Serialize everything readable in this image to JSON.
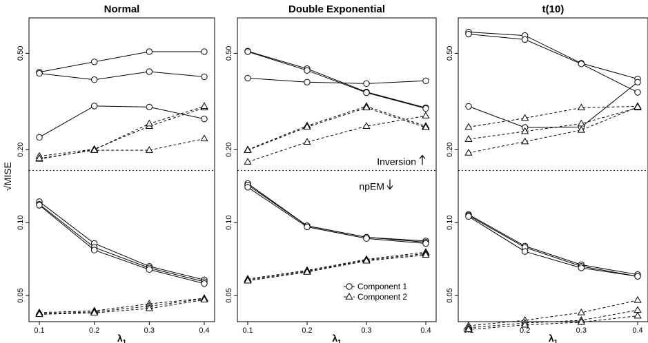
{
  "chart_data": {
    "type": "line",
    "ylabel": "√MISE",
    "y_scale": "log",
    "ylim": [
      0.039,
      0.7
    ],
    "y_ticks": [
      0.05,
      0.1,
      0.2,
      0.5
    ],
    "y_tick_labels": [
      "0.05",
      "0.10",
      "0.20",
      "0.50"
    ],
    "x_ticks": [
      0.1,
      0.2,
      0.3,
      0.4
    ],
    "x_tick_labels": [
      "0.1",
      "0.2",
      "0.3",
      "0.4"
    ],
    "xlabel": "λ",
    "xlabel_subscript": "1",
    "separator_y": 0.164,
    "annotations": {
      "upper": "Inversion",
      "lower": "npEM"
    },
    "legend": {
      "placement": "bottom-right of middle panel",
      "entries": [
        {
          "label": "Component 1",
          "marker": "circle",
          "line": "solid"
        },
        {
          "label": "Component 2",
          "marker": "triangle",
          "line": "dashed"
        }
      ]
    },
    "panels": [
      {
        "title": "Normal",
        "series": [
          {
            "component": 1,
            "method": "Inversion",
            "x": [
              0.1,
              0.2,
              0.3,
              0.4
            ],
            "y": [
              0.418,
              0.461,
              0.508,
              0.508
            ]
          },
          {
            "component": 1,
            "method": "Inversion",
            "x": [
              0.1,
              0.2,
              0.3,
              0.4
            ],
            "y": [
              0.413,
              0.389,
              0.42,
              0.4
            ]
          },
          {
            "component": 1,
            "method": "Inversion",
            "x": [
              0.1,
              0.2,
              0.3,
              0.4
            ],
            "y": [
              0.225,
              0.303,
              0.3,
              0.268
            ]
          },
          {
            "component": 2,
            "method": "Inversion",
            "x": [
              0.1,
              0.2,
              0.3,
              0.4
            ],
            "y": [
              0.188,
              0.201,
              0.25,
              0.298
            ]
          },
          {
            "component": 2,
            "method": "Inversion",
            "x": [
              0.1,
              0.2,
              0.3,
              0.4
            ],
            "y": [
              0.183,
              0.2,
              0.256,
              0.302
            ]
          },
          {
            "component": 2,
            "method": "Inversion",
            "x": [
              0.1,
              0.2,
              0.3,
              0.4
            ],
            "y": [
              0.184,
              0.199,
              0.199,
              0.222
            ]
          },
          {
            "component": 1,
            "method": "npEM",
            "x": [
              0.1,
              0.2,
              0.3,
              0.4
            ],
            "y": [
              0.122,
              0.082,
              0.066,
              0.058
            ]
          },
          {
            "component": 1,
            "method": "npEM",
            "x": [
              0.1,
              0.2,
              0.3,
              0.4
            ],
            "y": [
              0.119,
              0.079,
              0.065,
              0.057
            ]
          },
          {
            "component": 1,
            "method": "npEM",
            "x": [
              0.1,
              0.2,
              0.3,
              0.4
            ],
            "y": [
              0.118,
              0.077,
              0.064,
              0.056
            ]
          },
          {
            "component": 2,
            "method": "npEM",
            "x": [
              0.1,
              0.2,
              0.3,
              0.4
            ],
            "y": [
              0.0425,
              0.0432,
              0.0462,
              0.0487
            ]
          },
          {
            "component": 2,
            "method": "npEM",
            "x": [
              0.1,
              0.2,
              0.3,
              0.4
            ],
            "y": [
              0.042,
              0.0428,
              0.0452,
              0.0485
            ]
          },
          {
            "component": 2,
            "method": "npEM",
            "x": [
              0.1,
              0.2,
              0.3,
              0.4
            ],
            "y": [
              0.0418,
              0.0424,
              0.0442,
              0.048
            ]
          }
        ]
      },
      {
        "title": "Double Exponential",
        "series": [
          {
            "component": 1,
            "method": "Inversion",
            "x": [
              0.1,
              0.2,
              0.3,
              0.4
            ],
            "y": [
              0.51,
              0.432,
              0.346,
              0.298
            ]
          },
          {
            "component": 1,
            "method": "Inversion",
            "x": [
              0.1,
              0.2,
              0.3,
              0.4
            ],
            "y": [
              0.508,
              0.425,
              0.344,
              0.296
            ]
          },
          {
            "component": 1,
            "method": "Inversion",
            "x": [
              0.1,
              0.2,
              0.3,
              0.4
            ],
            "y": [
              0.395,
              0.38,
              0.375,
              0.385
            ]
          },
          {
            "component": 2,
            "method": "Inversion",
            "x": [
              0.1,
              0.2,
              0.3,
              0.4
            ],
            "y": [
              0.2,
              0.251,
              0.302,
              0.25
            ]
          },
          {
            "component": 2,
            "method": "Inversion",
            "x": [
              0.1,
              0.2,
              0.3,
              0.4
            ],
            "y": [
              0.199,
              0.248,
              0.298,
              0.247
            ]
          },
          {
            "component": 2,
            "method": "Inversion",
            "x": [
              0.1,
              0.2,
              0.3,
              0.4
            ],
            "y": [
              0.178,
              0.215,
              0.25,
              0.276
            ]
          },
          {
            "component": 1,
            "method": "npEM",
            "x": [
              0.1,
              0.2,
              0.3,
              0.4
            ],
            "y": [
              0.145,
              0.097,
              0.087,
              0.084
            ]
          },
          {
            "component": 1,
            "method": "npEM",
            "x": [
              0.1,
              0.2,
              0.3,
              0.4
            ],
            "y": [
              0.143,
              0.097,
              0.087,
              0.083
            ]
          },
          {
            "component": 1,
            "method": "npEM",
            "x": [
              0.1,
              0.2,
              0.3,
              0.4
            ],
            "y": [
              0.14,
              0.096,
              0.086,
              0.082
            ]
          },
          {
            "component": 2,
            "method": "npEM",
            "x": [
              0.1,
              0.2,
              0.3,
              0.4
            ],
            "y": [
              0.0585,
              0.0635,
              0.0705,
              0.0755
            ]
          },
          {
            "component": 2,
            "method": "npEM",
            "x": [
              0.1,
              0.2,
              0.3,
              0.4
            ],
            "y": [
              0.058,
              0.063,
              0.07,
              0.0745
            ]
          },
          {
            "component": 2,
            "method": "npEM",
            "x": [
              0.1,
              0.2,
              0.3,
              0.4
            ],
            "y": [
              0.0575,
              0.0625,
              0.0695,
              0.0735
            ]
          }
        ]
      },
      {
        "title": "t(10)",
        "series": [
          {
            "component": 1,
            "method": "Inversion",
            "x": [
              0.1,
              0.2,
              0.3,
              0.4
            ],
            "y": [
              0.612,
              0.592,
              0.455,
              0.392
            ]
          },
          {
            "component": 1,
            "method": "Inversion",
            "x": [
              0.1,
              0.2,
              0.3,
              0.4
            ],
            "y": [
              0.6,
              0.57,
              0.452,
              0.345
            ]
          },
          {
            "component": 1,
            "method": "Inversion",
            "x": [
              0.1,
              0.2,
              0.3,
              0.4
            ],
            "y": [
              0.302,
              0.247,
              0.248,
              0.38
            ]
          },
          {
            "component": 2,
            "method": "Inversion",
            "x": [
              0.1,
              0.2,
              0.3,
              0.4
            ],
            "y": [
              0.248,
              0.27,
              0.298,
              0.302
            ]
          },
          {
            "component": 2,
            "method": "Inversion",
            "x": [
              0.1,
              0.2,
              0.3,
              0.4
            ],
            "y": [
              0.221,
              0.238,
              0.256,
              0.298
            ]
          },
          {
            "component": 2,
            "method": "Inversion",
            "x": [
              0.1,
              0.2,
              0.3,
              0.4
            ],
            "y": [
              0.194,
              0.216,
              0.241,
              0.3
            ]
          },
          {
            "component": 1,
            "method": "npEM",
            "x": [
              0.1,
              0.2,
              0.3,
              0.4
            ],
            "y": [
              0.108,
              0.08,
              0.067,
              0.061
            ]
          },
          {
            "component": 1,
            "method": "npEM",
            "x": [
              0.1,
              0.2,
              0.3,
              0.4
            ],
            "y": [
              0.107,
              0.079,
              0.066,
              0.06
            ]
          },
          {
            "component": 1,
            "method": "npEM",
            "x": [
              0.1,
              0.2,
              0.3,
              0.4
            ],
            "y": [
              0.106,
              0.076,
              0.065,
              0.06
            ]
          },
          {
            "component": 2,
            "method": "npEM",
            "x": [
              0.1,
              0.2,
              0.3,
              0.4
            ],
            "y": [
              0.0375,
              0.0395,
              0.0425,
              0.0478
            ]
          },
          {
            "component": 2,
            "method": "npEM",
            "x": [
              0.1,
              0.2,
              0.3,
              0.4
            ],
            "y": [
              0.0368,
              0.0385,
              0.0395,
              0.0435
            ]
          },
          {
            "component": 2,
            "method": "npEM",
            "x": [
              0.1,
              0.2,
              0.3,
              0.4
            ],
            "y": [
              0.0362,
              0.0378,
              0.0388,
              0.0412
            ]
          }
        ]
      }
    ]
  }
}
